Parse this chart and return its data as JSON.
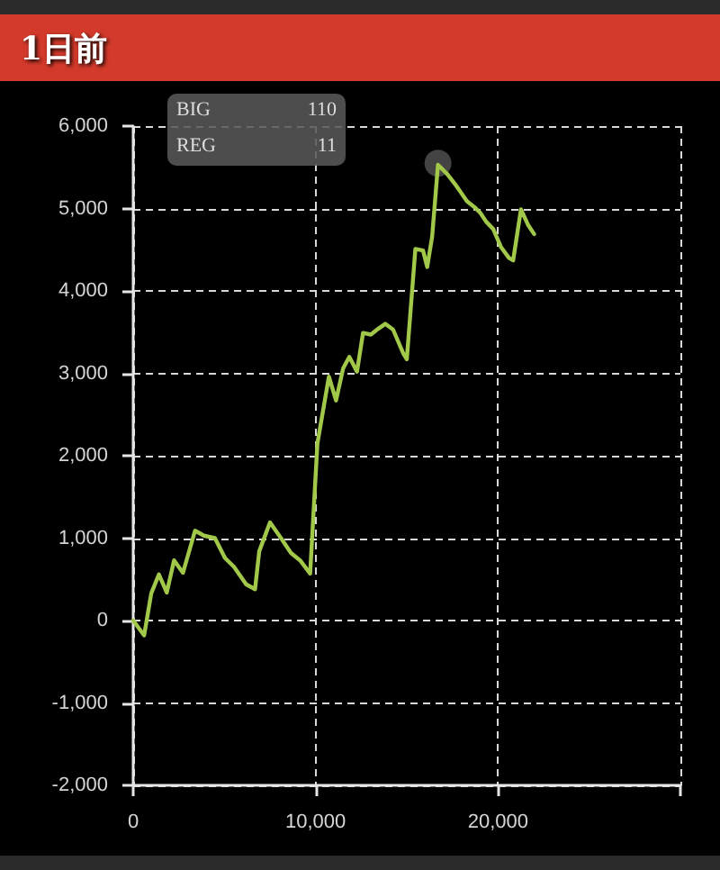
{
  "chart_data": {
    "type": "line",
    "title": "1日前",
    "x": [
      0,
      600,
      990,
      1410,
      1840,
      2240,
      2730,
      3390,
      3880,
      4480,
      5030,
      5530,
      6190,
      6680,
      6910,
      7500,
      8160,
      8650,
      9150,
      9700,
      10100,
      10730,
      11120,
      11510,
      11850,
      12270,
      12600,
      13030,
      13430,
      13820,
      14250,
      14810,
      15000,
      15470,
      15890,
      16120,
      16390,
      16710,
      17210,
      17700,
      18290,
      18690,
      19020,
      19350,
      19740,
      20170,
      20600,
      20830,
      21260,
      21650,
      21980
    ],
    "series": [
      {
        "color": "#a2c84a",
        "values": [
          0,
          -180,
          330,
          560,
          340,
          730,
          580,
          1090,
          1030,
          1000,
          760,
          650,
          440,
          380,
          840,
          1190,
          980,
          820,
          730,
          570,
          2150,
          2960,
          2670,
          3060,
          3200,
          3020,
          3490,
          3470,
          3540,
          3600,
          3530,
          3240,
          3170,
          4510,
          4490,
          4290,
          4660,
          5530,
          5420,
          5280,
          5090,
          5020,
          4950,
          4840,
          4750,
          4530,
          4400,
          4370,
          4990,
          4800,
          4690
        ]
      },
      {
        "type": "scatter",
        "color": "#4a4a4a",
        "x": [
          16710
        ],
        "values": [
          5550
        ]
      }
    ],
    "xlim": [
      0,
      30000
    ],
    "xticks": [
      0,
      {
        "value": 10000,
        "label": "10,000"
      },
      {
        "value": 20000,
        "label": "20,000"
      },
      {
        "value": 30000,
        "label": null
      }
    ],
    "ylim": [
      -2000,
      6000
    ],
    "yticks": [
      {
        "value": -2000,
        "label": "-2,000"
      },
      {
        "value": -1000,
        "label": "-1,000"
      },
      0,
      {
        "value": 1000,
        "label": "1,000"
      },
      {
        "value": 2000,
        "label": "2,000"
      },
      {
        "value": 3000,
        "label": "3,000"
      },
      {
        "value": 4000,
        "label": "4,000"
      },
      {
        "value": 5000,
        "label": "5,000"
      },
      {
        "value": 6000,
        "label": "6,000"
      }
    ],
    "grid": true,
    "annotations": [
      "BIG",
      "110",
      "REG",
      "11"
    ]
  }
}
